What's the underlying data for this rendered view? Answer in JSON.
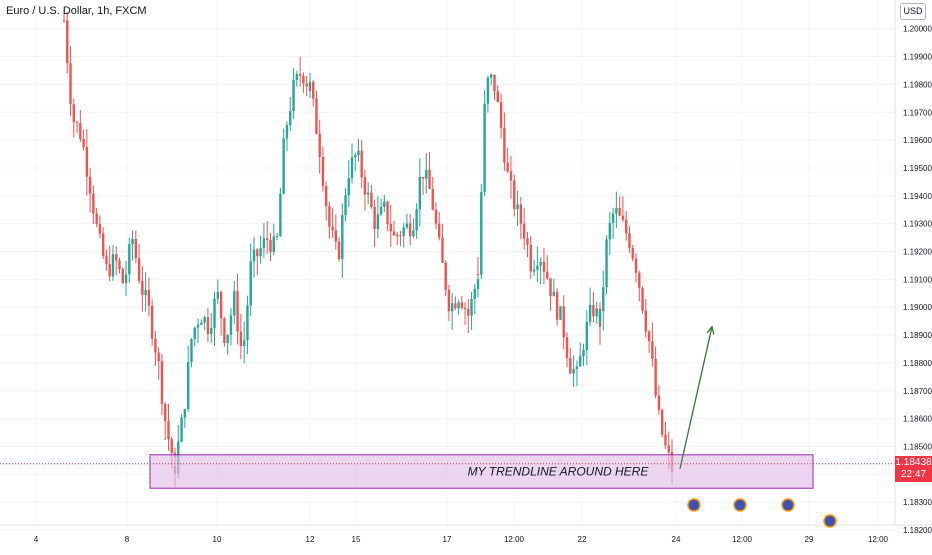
{
  "header": {
    "title": "Euro / U.S. Dollar, 1h, FXCM"
  },
  "currency_label": "USD",
  "last_price": {
    "price": "1.18438",
    "countdown": "22:47"
  },
  "annotation": {
    "text": "MY TRENDLINE AROUND HERE"
  },
  "colors": {
    "up": "#26a69a",
    "down": "#ef5350",
    "zone_fill": "#e1bee7",
    "zone_border": "#9c27b0",
    "arrow": "#2e7d32",
    "price_line": "#f23645"
  },
  "chart_data": {
    "type": "candlestick",
    "title": "Euro / U.S. Dollar, 1h, FXCM",
    "ylim": [
      1.182,
      1.2006
    ],
    "y_ticks": [
      "1.20000",
      "1.19900",
      "1.19800",
      "1.19700",
      "1.19600",
      "1.19500",
      "1.19400",
      "1.19300",
      "1.19200",
      "1.19100",
      "1.19000",
      "1.18900",
      "1.18800",
      "1.18700",
      "1.18600",
      "1.18500",
      "1.18400",
      "1.18300",
      "1.18200"
    ],
    "x_ticks": [
      "4",
      "8",
      "10",
      "12",
      "15",
      "17",
      "12:00",
      "22",
      "24",
      "12:00",
      "29",
      "12:00"
    ],
    "last_price": 1.18438,
    "support_zone": {
      "from": 1.1835,
      "to": 1.1847
    },
    "arrow": {
      "from": 1.1842,
      "to": 1.1893
    },
    "series": [
      {
        "segment": "4-8",
        "close_path": [
          1.2003,
          1.1968,
          1.1962,
          1.1945,
          1.1925,
          1.1913,
          1.1917,
          1.1908,
          1.1925,
          1.1908,
          1.1898,
          1.1881,
          1.1856,
          1.1843
        ]
      },
      {
        "segment": "8-12",
        "close_path": [
          1.1843,
          1.1862,
          1.189,
          1.1898,
          1.1893,
          1.1905,
          1.1888,
          1.1903,
          1.1882,
          1.1915,
          1.192,
          1.1925,
          1.192,
          1.1962,
          1.1978,
          1.1985,
          1.1979
        ]
      },
      {
        "segment": "12-17",
        "close_path": [
          1.1979,
          1.1958,
          1.193,
          1.1917,
          1.1948,
          1.1955,
          1.1942,
          1.193,
          1.1935,
          1.1925,
          1.1928,
          1.193,
          1.195,
          1.194,
          1.1918,
          1.19,
          1.1905,
          1.1897,
          1.1912
        ]
      },
      {
        "segment": "17-22",
        "close_path": [
          1.1912,
          1.198,
          1.1982,
          1.1965,
          1.1945,
          1.1935,
          1.1928,
          1.1915,
          1.192,
          1.1912,
          1.1902,
          1.1895,
          1.188,
          1.1875,
          1.189,
          1.19,
          1.1895
        ]
      },
      {
        "segment": "22-24",
        "close_path": [
          1.1895,
          1.1925,
          1.1935,
          1.193,
          1.1925,
          1.1915,
          1.19,
          1.1885,
          1.1862,
          1.185,
          1.1842
        ]
      }
    ]
  }
}
